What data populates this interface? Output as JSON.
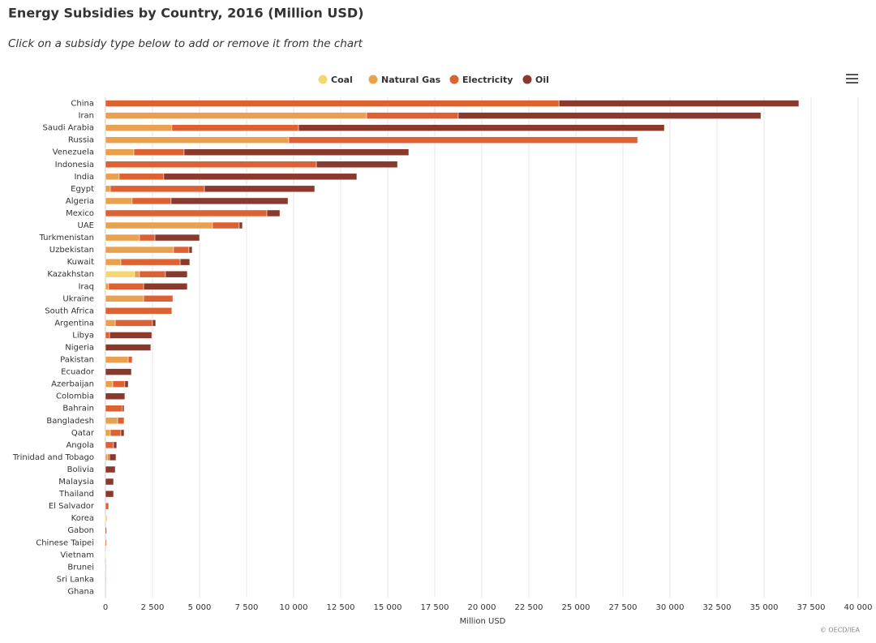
{
  "chart_data": {
    "type": "stacked-bar-horizontal",
    "title": "Energy Subsidies by Country, 2016 (Million USD)",
    "subtitle": "Click on a subsidy type below to add or remove it from the chart",
    "x_label": "Million USD",
    "credits": "© OECD/IEA",
    "legend": "top",
    "grid": true,
    "categories": [
      "China",
      "Iran",
      "Saudi Arabia",
      "Russia",
      "Venezuela",
      "Indonesia",
      "India",
      "Egypt",
      "Algeria",
      "Mexico",
      "UAE",
      "Turkmenistan",
      "Uzbekistan",
      "Kuwait",
      "Kazakhstan",
      "Iraq",
      "Ukraine",
      "South Africa",
      "Argentina",
      "Libya",
      "Nigeria",
      "Pakistan",
      "Ecuador",
      "Azerbaijan",
      "Colombia",
      "Bahrain",
      "Bangladesh",
      "Qatar",
      "Angola",
      "Trinidad and Tobago",
      "Bolivia",
      "Malaysia",
      "Thailand",
      "El Salvador",
      "Korea",
      "Gabon",
      "Chinese Taipei",
      "Vietnam",
      "Brunei",
      "Sri Lanka",
      "Ghana"
    ],
    "series": [
      {
        "name": "Coal",
        "color": "#f6d66e",
        "values": [
          0,
          0,
          0,
          0,
          0,
          0,
          0,
          0,
          0,
          0,
          0,
          0,
          0,
          0,
          1550,
          0,
          0,
          0,
          0,
          0,
          0,
          0,
          0,
          0,
          0,
          0,
          0,
          0,
          0,
          0,
          0,
          0,
          0,
          0,
          90,
          0,
          0,
          30,
          0,
          0,
          0
        ]
      },
      {
        "name": "Natural Gas",
        "color": "#e9a150",
        "values": [
          0,
          13880,
          3530,
          9740,
          1510,
          0,
          730,
          260,
          1420,
          0,
          5690,
          1810,
          3620,
          820,
          260,
          170,
          2030,
          0,
          520,
          0,
          0,
          1210,
          0,
          390,
          0,
          0,
          650,
          260,
          0,
          130,
          0,
          0,
          0,
          0,
          0,
          0,
          0,
          0,
          0,
          0,
          0
        ]
      },
      {
        "name": "Electricity",
        "color": "#dc6233",
        "values": [
          24100,
          4870,
          6730,
          18540,
          2670,
          11210,
          2370,
          5000,
          2070,
          8580,
          1420,
          820,
          820,
          3150,
          1380,
          1860,
          1550,
          3530,
          1980,
          220,
          0,
          210,
          0,
          640,
          0,
          900,
          340,
          560,
          430,
          90,
          0,
          0,
          0,
          170,
          0,
          0,
          60,
          0,
          0,
          0,
          0
        ]
      },
      {
        "name": "Oil",
        "color": "#8a3a2d",
        "values": [
          12750,
          16080,
          19440,
          0,
          11940,
          4310,
          10260,
          5860,
          6210,
          690,
          170,
          2370,
          170,
          510,
          1160,
          2320,
          0,
          0,
          170,
          2240,
          2410,
          0,
          1380,
          180,
          1030,
          90,
          0,
          170,
          170,
          340,
          520,
          430,
          430,
          0,
          0,
          60,
          0,
          0,
          30,
          30,
          0
        ]
      }
    ],
    "xlim": [
      0,
      40000
    ],
    "xticks": [
      0,
      {
        "value": 2500,
        "label": "2 500"
      },
      {
        "value": 5000,
        "label": "5 000"
      },
      {
        "value": 7500,
        "label": "7 500"
      },
      {
        "value": 10000,
        "label": "10 000"
      },
      {
        "value": 12500,
        "label": "12 500"
      },
      {
        "value": 15000,
        "label": "15 000"
      },
      {
        "value": 17500,
        "label": "17 500"
      },
      {
        "value": 20000,
        "label": "20 000"
      },
      {
        "value": 22500,
        "label": "22 500"
      },
      {
        "value": 25000,
        "label": "25 000"
      },
      {
        "value": 27500,
        "label": "27 500"
      },
      {
        "value": 30000,
        "label": "30 000"
      },
      {
        "value": 32500,
        "label": "32 500"
      },
      {
        "value": 35000,
        "label": "35 000"
      },
      {
        "value": 37500,
        "label": "37 500"
      },
      {
        "value": 40000,
        "label": "40 000"
      }
    ]
  }
}
